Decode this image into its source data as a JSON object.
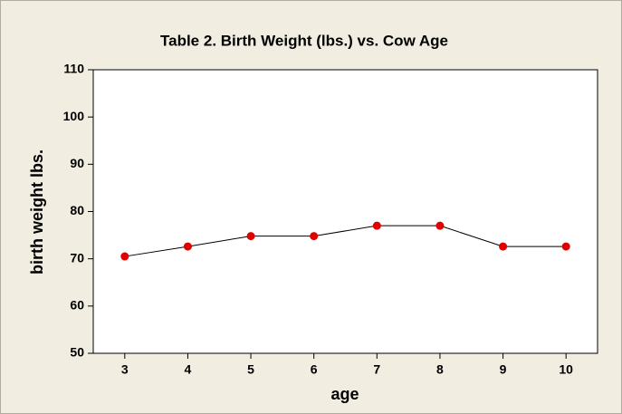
{
  "chart_data": {
    "type": "line",
    "title": "Table 2. Birth Weight (lbs.) vs. Cow Age",
    "x_label": "age",
    "y_label": "birth weight lbs.",
    "categories": [
      "3",
      "4",
      "5",
      "6",
      "7",
      "8",
      "9",
      "10"
    ],
    "series": [
      {
        "name": "birth weight",
        "color": "#e00000",
        "values": [
          70.5,
          72.6,
          74.8,
          74.8,
          77.0,
          77.0,
          72.6,
          72.6
        ]
      }
    ],
    "ylim": [
      50,
      110
    ],
    "yticks": [
      50,
      60,
      70,
      80,
      90,
      100,
      110
    ],
    "grid": false
  }
}
